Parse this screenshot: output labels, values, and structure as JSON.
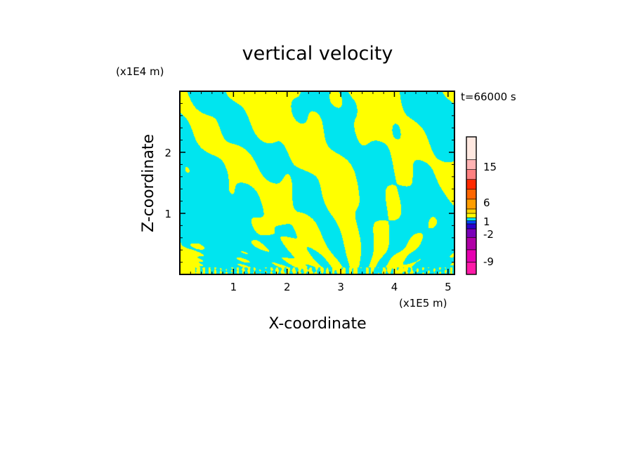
{
  "chart_data": {
    "type": "heatmap",
    "title": "vertical velocity",
    "time_label": "t=66000 s",
    "xlabel": "X-coordinate",
    "ylabel": "Z-coordinate",
    "x_unit": "(x1E5 m)",
    "y_unit": "(x1E4 m)",
    "xlim": [
      0,
      5.12
    ],
    "ylim": [
      0,
      3.0
    ],
    "x_ticks": [
      "1",
      "2",
      "3",
      "4",
      "5"
    ],
    "y_ticks": [
      "1",
      "2"
    ],
    "x_tick_values": [
      1,
      2,
      3,
      4,
      5
    ],
    "y_tick_values": [
      1,
      2
    ],
    "field_colors": {
      "negative": "#00e5ef",
      "positive": "#ffff00"
    },
    "colorbar": {
      "labels": [
        "15",
        "6",
        "1",
        "-2",
        "-9"
      ],
      "bins": [
        {
          "color": "#ff1aa8"
        },
        {
          "color": "#e600b0"
        },
        {
          "color": "#b000a6"
        },
        {
          "color": "#7a00b8"
        },
        {
          "color": "#2a00cc"
        },
        {
          "color": "#0046ff"
        },
        {
          "color": "#00e5ef"
        },
        {
          "color": "#ffff00"
        },
        {
          "color": "#ffd400"
        },
        {
          "color": "#ff9d00"
        },
        {
          "color": "#ff6600"
        },
        {
          "color": "#ff2a00"
        },
        {
          "color": "#ff8080"
        },
        {
          "color": "#ffb3b3"
        },
        {
          "color": "#ffe8e0"
        }
      ]
    }
  }
}
